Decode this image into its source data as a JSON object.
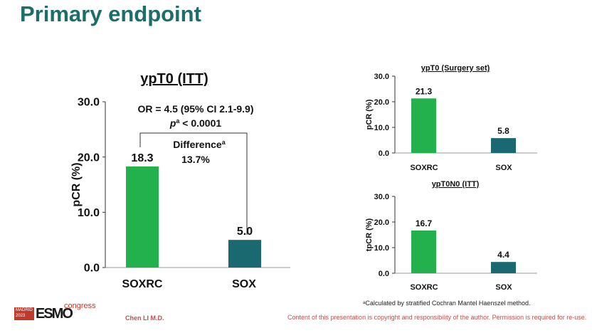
{
  "slide": {
    "title": "Primary endpoint",
    "author": "Chen LI M.D.",
    "footnote": "ᵃCalculated by stratified Cochran Mantel Haenszel method.",
    "copyright": "Content of this presentation is copyright and responsibility of the author. Permission is required for re-use.",
    "logo": {
      "city": "MADRID",
      "year": "2023",
      "brand": "ESMO",
      "suffix": "congress"
    }
  },
  "colors": {
    "title": "#1d6e6a",
    "soxrc": "#22b14c",
    "sox": "#1a6870"
  },
  "chart_data": [
    {
      "type": "bar",
      "title": "ypT0 (ITT)",
      "ylabel": "pCR (%)",
      "categories": [
        "SOXRC",
        "SOX"
      ],
      "values": [
        18.3,
        5.0
      ],
      "ylim": [
        0,
        30
      ],
      "yticks": [
        "0.0",
        "10.0",
        "20.0",
        "30.0"
      ],
      "annotations": {
        "or": "OR = 4.5 (95% CI 2.1-9.9)",
        "p_sym": "p",
        "p_sup": "a",
        "p_val": " < 0.0001",
        "diff_label": "Difference",
        "diff_sup": "a",
        "diff_value": "13.7%"
      }
    },
    {
      "type": "bar",
      "title": "ypT0 (Surgery set)",
      "ylabel": "pCR (%)",
      "categories": [
        "SOXRC",
        "SOX"
      ],
      "values": [
        21.3,
        5.8
      ],
      "ylim": [
        0,
        30
      ],
      "yticks": [
        "0.0",
        "10.0",
        "20.0",
        "30.0"
      ]
    },
    {
      "type": "bar",
      "title": "ypT0N0 (ITT)",
      "ylabel": "tpCR (%)",
      "categories": [
        "SOXRC",
        "SOX"
      ],
      "values": [
        16.7,
        4.4
      ],
      "ylim": [
        0,
        30
      ],
      "yticks": [
        "0.0",
        "10.0",
        "20.0",
        "30.0"
      ]
    }
  ]
}
